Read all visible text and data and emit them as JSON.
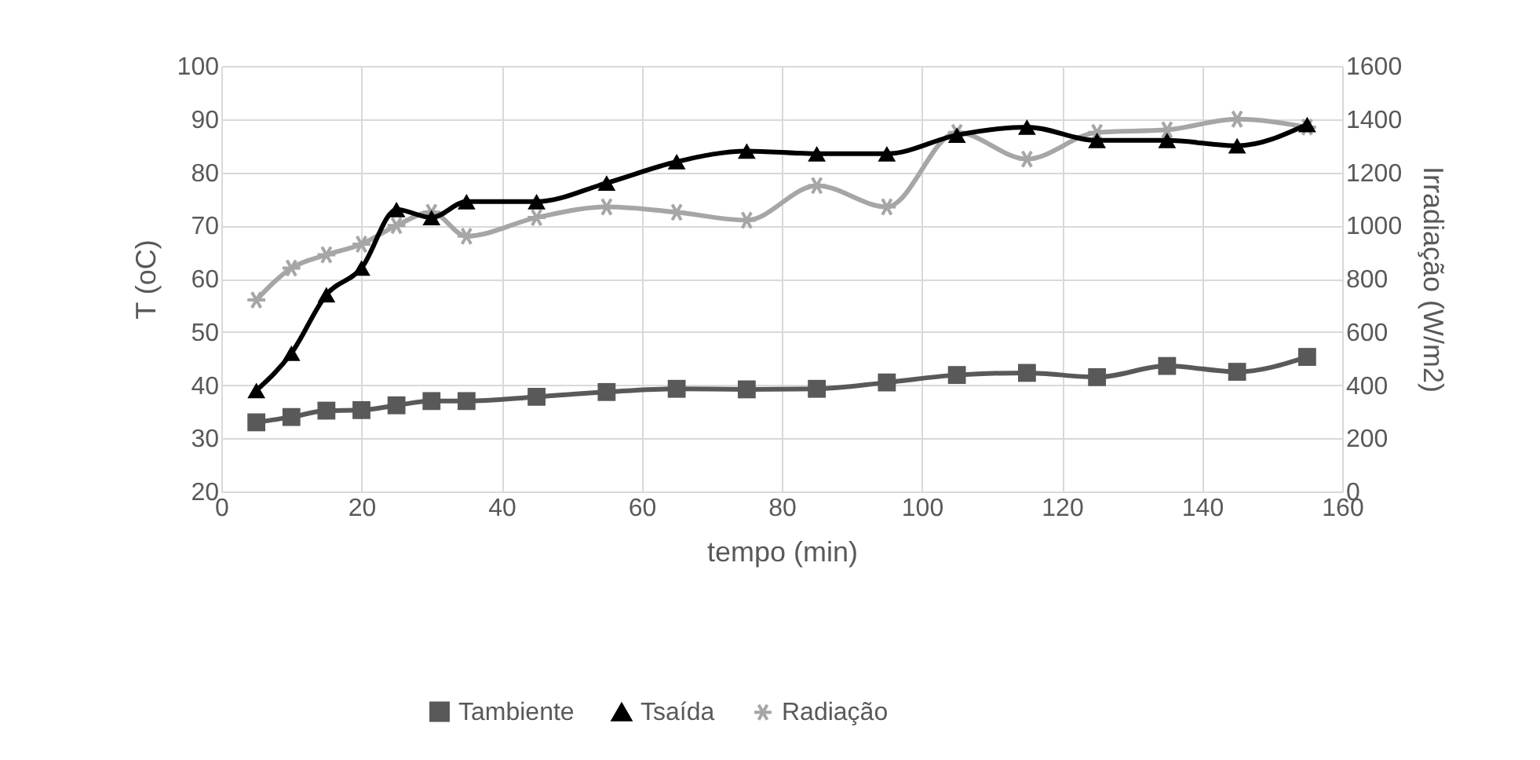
{
  "chart_data": {
    "type": "line",
    "xlabel": "tempo (min)",
    "ylabel": "T (oC)",
    "y2label": "Irradiação (W/m2)",
    "x": [
      5,
      10,
      15,
      20,
      25,
      30,
      35,
      45,
      55,
      65,
      75,
      85,
      95,
      105,
      115,
      125,
      135,
      145,
      155
    ],
    "series": [
      {
        "name": "Tambiente",
        "color": "#595959",
        "marker": "square",
        "values": [
          33,
          34,
          35.2,
          35.3,
          36.2,
          37,
          37,
          37.8,
          38.7,
          39.3,
          39.2,
          39.3,
          40.5,
          41.9,
          42.3,
          41.5,
          43.6,
          42.5,
          45.3
        ]
      },
      {
        "name": "Tsaída",
        "color": "#000000",
        "marker": "triangle",
        "values": [
          39,
          46,
          57,
          62,
          73,
          71.5,
          74.5,
          74.5,
          78,
          82,
          84,
          83.5,
          83.5,
          87,
          88.5,
          86,
          86,
          85,
          89
        ]
      },
      {
        "name": "Radiação",
        "color": "#a6a6a6",
        "marker": "cross",
        "axis": "y2",
        "values": [
          720,
          840,
          890,
          930,
          1000,
          1050,
          960,
          1030,
          1070,
          1050,
          1020,
          1150,
          1070,
          1350,
          1250,
          1350,
          1360,
          1400,
          1370
        ]
      }
    ],
    "xlim": [
      0,
      160
    ],
    "xticks": [
      0,
      20,
      40,
      60,
      80,
      100,
      120,
      140,
      160
    ],
    "ylim": [
      20,
      100
    ],
    "yticks": [
      20,
      30,
      40,
      50,
      60,
      70,
      80,
      90,
      100
    ],
    "y2lim": [
      0,
      1600
    ],
    "y2ticks": [
      0,
      200,
      400,
      600,
      800,
      1000,
      1200,
      1400,
      1600
    ],
    "grid": true,
    "legend": "bottom"
  }
}
